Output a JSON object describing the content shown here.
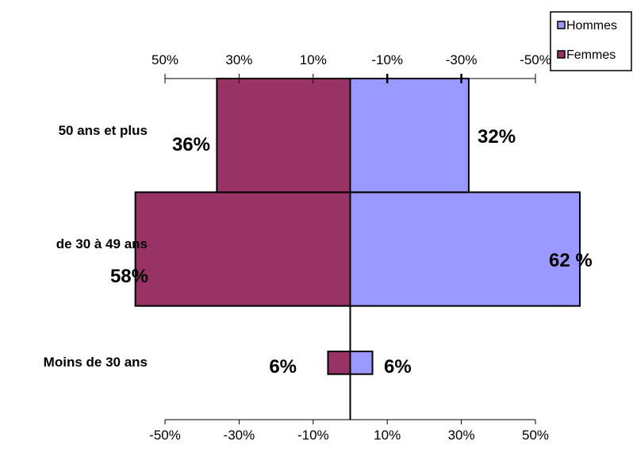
{
  "chart_data": {
    "type": "bar",
    "orientation": "horizontal",
    "stacking": "diverging",
    "categories": [
      "Moins de 30 ans",
      "de 30 à 49 ans",
      "50 ans et plus"
    ],
    "series": [
      {
        "name": "Hommes",
        "values": [
          6,
          62,
          32
        ],
        "labels": [
          "6%",
          "62 %",
          "32%"
        ],
        "color": "#9999ff"
      },
      {
        "name": "Femmes",
        "values": [
          6,
          58,
          36
        ],
        "labels": [
          "6%",
          "58%",
          "36%"
        ],
        "color": "#993366"
      }
    ],
    "bottom_axis": {
      "min": -50,
      "max": 50,
      "ticks": [
        "-50%",
        "-30%",
        "-10%",
        "10%",
        "30%",
        "50%"
      ]
    },
    "top_axis": {
      "ticks": [
        "50%",
        "30%",
        "10%",
        "-10%",
        "-30%",
        "-50%"
      ]
    },
    "legend": {
      "position": "top-right",
      "entries": [
        "Hommes",
        "Femmes"
      ]
    },
    "grid": false
  }
}
